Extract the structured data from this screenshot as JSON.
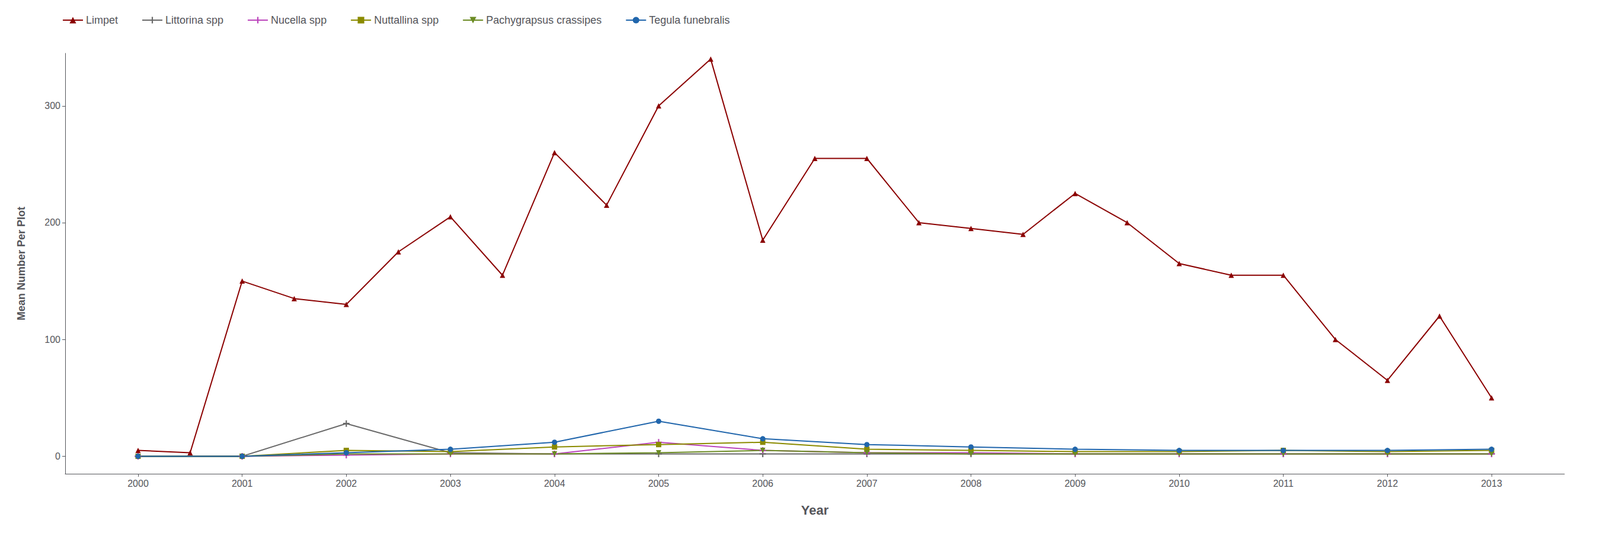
{
  "chart_data": {
    "type": "line",
    "xlabel": "Year",
    "ylabel": "Mean Number Per Plot",
    "xlim": [
      1999.3,
      2013.7
    ],
    "xticks": [
      2000,
      2001,
      2002,
      2003,
      2004,
      2005,
      2006,
      2007,
      2008,
      2009,
      2010,
      2011,
      2012,
      2013
    ],
    "ylim": [
      -15,
      345
    ],
    "yticks": [
      0,
      100,
      200,
      300
    ],
    "grid": false,
    "legend": "upper left",
    "series": [
      {
        "name": "Limpet",
        "color": "#8B0000",
        "marker": "triangle",
        "x": [
          2000,
          2000.5,
          2001,
          2001.5,
          2002,
          2002.5,
          2003,
          2003.5,
          2004,
          2004.5,
          2005,
          2005.5,
          2006,
          2006.5,
          2007,
          2007.5,
          2008,
          2008.5,
          2009,
          2009.5,
          2010,
          2010.5,
          2011,
          2011.5,
          2012,
          2012.5,
          2013
        ],
        "values": [
          5,
          3,
          150,
          135,
          130,
          175,
          205,
          155,
          260,
          215,
          300,
          340,
          185,
          255,
          255,
          200,
          195,
          190,
          225,
          200,
          165,
          155,
          155,
          100,
          65,
          120,
          50
        ]
      },
      {
        "name": "Littorina spp",
        "color": "#696969",
        "marker": "plus",
        "x": [
          2000,
          2001,
          2002,
          2003,
          2004,
          2005,
          2006,
          2007,
          2008,
          2009,
          2010,
          2011,
          2012,
          2013
        ],
        "values": [
          0,
          0,
          28,
          3,
          2,
          2,
          2,
          2,
          2,
          2,
          2,
          2,
          2,
          2
        ]
      },
      {
        "name": "Nucella spp",
        "color": "#BB44BB",
        "marker": "plus",
        "x": [
          2000,
          2001,
          2002,
          2003,
          2004,
          2005,
          2006,
          2007,
          2008,
          2009,
          2010,
          2011,
          2012,
          2013
        ],
        "values": [
          0,
          0,
          1,
          2,
          2,
          12,
          5,
          3,
          3,
          2,
          2,
          2,
          2,
          2
        ]
      },
      {
        "name": "Nuttallina spp",
        "color": "#8B8B00",
        "marker": "square",
        "x": [
          2000,
          2001,
          2002,
          2003,
          2004,
          2005,
          2006,
          2007,
          2008,
          2009,
          2010,
          2011,
          2012,
          2013
        ],
        "values": [
          0,
          0,
          5,
          4,
          8,
          10,
          12,
          6,
          5,
          4,
          4,
          5,
          4,
          5
        ]
      },
      {
        "name": "Pachygrapsus crassipes",
        "color": "#6B8B23",
        "marker": "triangle-down",
        "x": [
          2000,
          2001,
          2002,
          2003,
          2004,
          2005,
          2006,
          2007,
          2008,
          2009,
          2010,
          2011,
          2012,
          2013
        ],
        "values": [
          0,
          0,
          2,
          2,
          2,
          3,
          5,
          3,
          2,
          2,
          2,
          2,
          2,
          2
        ]
      },
      {
        "name": "Tegula funebralis",
        "color": "#2166AC",
        "marker": "circle",
        "x": [
          2000,
          2001,
          2002,
          2003,
          2004,
          2005,
          2006,
          2007,
          2008,
          2009,
          2010,
          2011,
          2012,
          2013
        ],
        "values": [
          0,
          0,
          3,
          6,
          12,
          30,
          15,
          10,
          8,
          6,
          5,
          5,
          5,
          6
        ]
      }
    ]
  }
}
